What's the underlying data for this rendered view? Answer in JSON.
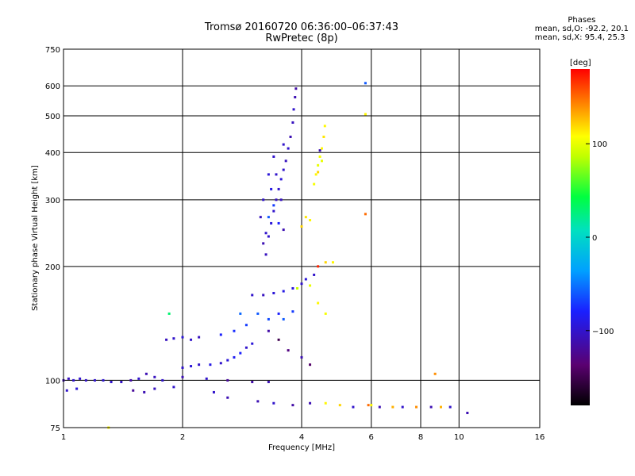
{
  "header": {
    "title_line1": "Tromsø 20160720 06:36:00–06:37:43",
    "title_line2": "RwPretec (8p)"
  },
  "phase_stats": {
    "heading": "Phases",
    "line_o": "mean, sd,O: -92.2, 20.1",
    "line_x": "mean, sd,X:  95.4, 25.3"
  },
  "colorbar": {
    "unit_label": "[deg]",
    "ticks": [
      {
        "value": 100,
        "label": "100"
      },
      {
        "value": 0,
        "label": "0"
      },
      {
        "value": -100,
        "label": "−100"
      }
    ],
    "range": [
      -180,
      180
    ]
  },
  "chart_data": {
    "type": "scatter",
    "title": "Tromsø 20160720 06:36:00–06:37:43",
    "subtitle": "RwPretec (8p)",
    "xlabel": "Frequency [MHz]",
    "ylabel": "Stationary phase Virtual Height [km]",
    "xscale": "log",
    "yscale": "log",
    "xlim": [
      1,
      16
    ],
    "ylim": [
      75,
      750
    ],
    "x_ticks": [
      {
        "value": 1,
        "label": "1"
      },
      {
        "value": 2,
        "label": "2"
      },
      {
        "value": 4,
        "label": "4"
      },
      {
        "value": 6,
        "label": "6"
      },
      {
        "value": 8,
        "label": "8"
      },
      {
        "value": 10,
        "label": "10"
      },
      {
        "value": 16,
        "label": "16"
      }
    ],
    "y_ticks": [
      {
        "value": 75,
        "label": "75"
      },
      {
        "value": 100,
        "label": "100"
      },
      {
        "value": 200,
        "label": "200"
      },
      {
        "value": 300,
        "label": "300"
      },
      {
        "value": 400,
        "label": "400"
      },
      {
        "value": 500,
        "label": "500"
      },
      {
        "value": 600,
        "label": "600"
      },
      {
        "value": 750,
        "label": "750"
      }
    ],
    "grid": true,
    "points": [
      {
        "x": 1.0,
        "y": 100,
        "phase": -110
      },
      {
        "x": 1.03,
        "y": 101,
        "phase": -105
      },
      {
        "x": 1.06,
        "y": 100,
        "phase": -100
      },
      {
        "x": 1.1,
        "y": 101,
        "phase": -100
      },
      {
        "x": 1.14,
        "y": 100,
        "phase": -102
      },
      {
        "x": 1.2,
        "y": 100,
        "phase": -100
      },
      {
        "x": 1.26,
        "y": 100,
        "phase": -98
      },
      {
        "x": 1.32,
        "y": 99,
        "phase": -100
      },
      {
        "x": 1.4,
        "y": 99,
        "phase": -103
      },
      {
        "x": 1.48,
        "y": 100,
        "phase": -115
      },
      {
        "x": 1.55,
        "y": 101,
        "phase": -100
      },
      {
        "x": 1.62,
        "y": 104,
        "phase": -110
      },
      {
        "x": 1.7,
        "y": 102,
        "phase": -105
      },
      {
        "x": 1.78,
        "y": 100,
        "phase": -100
      },
      {
        "x": 1.02,
        "y": 94,
        "phase": -100
      },
      {
        "x": 1.08,
        "y": 95,
        "phase": -95
      },
      {
        "x": 1.5,
        "y": 94,
        "phase": -120
      },
      {
        "x": 1.6,
        "y": 93,
        "phase": -110
      },
      {
        "x": 1.7,
        "y": 95,
        "phase": -105
      },
      {
        "x": 1.9,
        "y": 96,
        "phase": -100
      },
      {
        "x": 1.82,
        "y": 128,
        "phase": -105
      },
      {
        "x": 1.9,
        "y": 129,
        "phase": -100
      },
      {
        "x": 2.0,
        "y": 130,
        "phase": -95
      },
      {
        "x": 2.1,
        "y": 128,
        "phase": -100
      },
      {
        "x": 2.2,
        "y": 130,
        "phase": -105
      },
      {
        "x": 2.0,
        "y": 108,
        "phase": -100
      },
      {
        "x": 2.1,
        "y": 109,
        "phase": -95
      },
      {
        "x": 2.2,
        "y": 110,
        "phase": -100
      },
      {
        "x": 2.35,
        "y": 110,
        "phase": -90
      },
      {
        "x": 2.5,
        "y": 111,
        "phase": -100
      },
      {
        "x": 2.6,
        "y": 113,
        "phase": -95
      },
      {
        "x": 2.7,
        "y": 115,
        "phase": -85
      },
      {
        "x": 2.8,
        "y": 118,
        "phase": -80
      },
      {
        "x": 2.9,
        "y": 122,
        "phase": -100
      },
      {
        "x": 3.0,
        "y": 125,
        "phase": -95
      },
      {
        "x": 2.0,
        "y": 102,
        "phase": -110
      },
      {
        "x": 2.3,
        "y": 101,
        "phase": -100
      },
      {
        "x": 2.6,
        "y": 100,
        "phase": -120
      },
      {
        "x": 3.0,
        "y": 99,
        "phase": -115
      },
      {
        "x": 3.3,
        "y": 99,
        "phase": -110
      },
      {
        "x": 2.5,
        "y": 132,
        "phase": -80
      },
      {
        "x": 2.7,
        "y": 135,
        "phase": -75
      },
      {
        "x": 2.9,
        "y": 140,
        "phase": -70
      },
      {
        "x": 3.1,
        "y": 150,
        "phase": -60
      },
      {
        "x": 3.3,
        "y": 145,
        "phase": -65
      },
      {
        "x": 2.8,
        "y": 150,
        "phase": -55
      },
      {
        "x": 3.0,
        "y": 168,
        "phase": -100
      },
      {
        "x": 3.2,
        "y": 168,
        "phase": -105
      },
      {
        "x": 3.4,
        "y": 170,
        "phase": -95
      },
      {
        "x": 3.6,
        "y": 172,
        "phase": -90
      },
      {
        "x": 3.8,
        "y": 175,
        "phase": -95
      },
      {
        "x": 4.0,
        "y": 180,
        "phase": -100
      },
      {
        "x": 4.1,
        "y": 185,
        "phase": -95
      },
      {
        "x": 4.3,
        "y": 190,
        "phase": -100
      },
      {
        "x": 3.9,
        "y": 175,
        "phase": 90
      },
      {
        "x": 4.2,
        "y": 178,
        "phase": 100
      },
      {
        "x": 4.4,
        "y": 200,
        "phase": 170
      },
      {
        "x": 4.6,
        "y": 205,
        "phase": 120
      },
      {
        "x": 4.8,
        "y": 205,
        "phase": 110
      },
      {
        "x": 4.4,
        "y": 160,
        "phase": 110
      },
      {
        "x": 4.6,
        "y": 150,
        "phase": 105
      },
      {
        "x": 3.5,
        "y": 150,
        "phase": -80
      },
      {
        "x": 3.6,
        "y": 145,
        "phase": -60
      },
      {
        "x": 3.8,
        "y": 152,
        "phase": -70
      },
      {
        "x": 3.3,
        "y": 135,
        "phase": -115
      },
      {
        "x": 3.5,
        "y": 128,
        "phase": -150
      },
      {
        "x": 3.7,
        "y": 120,
        "phase": -130
      },
      {
        "x": 4.0,
        "y": 115,
        "phase": -110
      },
      {
        "x": 4.2,
        "y": 110,
        "phase": -140
      },
      {
        "x": 3.2,
        "y": 230,
        "phase": -110
      },
      {
        "x": 3.25,
        "y": 215,
        "phase": -105
      },
      {
        "x": 3.3,
        "y": 240,
        "phase": -100
      },
      {
        "x": 3.35,
        "y": 260,
        "phase": -95
      },
      {
        "x": 3.4,
        "y": 280,
        "phase": -100
      },
      {
        "x": 3.45,
        "y": 300,
        "phase": -105
      },
      {
        "x": 3.5,
        "y": 320,
        "phase": -100
      },
      {
        "x": 3.55,
        "y": 340,
        "phase": -95
      },
      {
        "x": 3.6,
        "y": 360,
        "phase": -100
      },
      {
        "x": 3.65,
        "y": 380,
        "phase": -105
      },
      {
        "x": 3.7,
        "y": 410,
        "phase": -100
      },
      {
        "x": 3.75,
        "y": 440,
        "phase": -110
      },
      {
        "x": 3.8,
        "y": 480,
        "phase": -105
      },
      {
        "x": 3.82,
        "y": 520,
        "phase": -100
      },
      {
        "x": 3.85,
        "y": 560,
        "phase": -110
      },
      {
        "x": 3.87,
        "y": 590,
        "phase": -115
      },
      {
        "x": 3.3,
        "y": 270,
        "phase": -60
      },
      {
        "x": 3.4,
        "y": 290,
        "phase": -70
      },
      {
        "x": 3.5,
        "y": 260,
        "phase": -80
      },
      {
        "x": 3.2,
        "y": 300,
        "phase": -100
      },
      {
        "x": 3.3,
        "y": 350,
        "phase": -95
      },
      {
        "x": 3.4,
        "y": 390,
        "phase": -100
      },
      {
        "x": 3.6,
        "y": 250,
        "phase": -110
      },
      {
        "x": 3.15,
        "y": 270,
        "phase": -105
      },
      {
        "x": 3.25,
        "y": 245,
        "phase": -100
      },
      {
        "x": 3.35,
        "y": 320,
        "phase": -90
      },
      {
        "x": 3.45,
        "y": 350,
        "phase": -100
      },
      {
        "x": 3.55,
        "y": 300,
        "phase": -105
      },
      {
        "x": 3.6,
        "y": 420,
        "phase": -100
      },
      {
        "x": 4.3,
        "y": 330,
        "phase": 105
      },
      {
        "x": 4.35,
        "y": 350,
        "phase": 110
      },
      {
        "x": 4.4,
        "y": 370,
        "phase": 100
      },
      {
        "x": 4.45,
        "y": 390,
        "phase": 105
      },
      {
        "x": 4.5,
        "y": 410,
        "phase": 110
      },
      {
        "x": 4.55,
        "y": 440,
        "phase": 115
      },
      {
        "x": 4.58,
        "y": 470,
        "phase": 110
      },
      {
        "x": 4.4,
        "y": 355,
        "phase": 120
      },
      {
        "x": 4.5,
        "y": 380,
        "phase": 100
      },
      {
        "x": 4.1,
        "y": 270,
        "phase": 115
      },
      {
        "x": 4.2,
        "y": 265,
        "phase": 110
      },
      {
        "x": 4.0,
        "y": 255,
        "phase": 120
      },
      {
        "x": 4.45,
        "y": 405,
        "phase": -110
      },
      {
        "x": 5.8,
        "y": 610,
        "phase": -60
      },
      {
        "x": 5.8,
        "y": 505,
        "phase": 110
      },
      {
        "x": 5.8,
        "y": 275,
        "phase": 150
      },
      {
        "x": 3.1,
        "y": 88,
        "phase": -110
      },
      {
        "x": 3.4,
        "y": 87,
        "phase": -100
      },
      {
        "x": 3.8,
        "y": 86,
        "phase": -115
      },
      {
        "x": 4.2,
        "y": 87,
        "phase": -110
      },
      {
        "x": 4.6,
        "y": 87,
        "phase": 110
      },
      {
        "x": 5.0,
        "y": 86,
        "phase": 120
      },
      {
        "x": 5.4,
        "y": 85,
        "phase": -100
      },
      {
        "x": 5.9,
        "y": 86,
        "phase": 150
      },
      {
        "x": 6.3,
        "y": 85,
        "phase": -110
      },
      {
        "x": 6.8,
        "y": 85,
        "phase": 130
      },
      {
        "x": 7.2,
        "y": 85,
        "phase": -100
      },
      {
        "x": 7.8,
        "y": 85,
        "phase": 140
      },
      {
        "x": 8.5,
        "y": 85,
        "phase": -110
      },
      {
        "x": 9.0,
        "y": 85,
        "phase": 130
      },
      {
        "x": 9.5,
        "y": 85,
        "phase": -100
      },
      {
        "x": 10.5,
        "y": 82,
        "phase": -110
      },
      {
        "x": 8.7,
        "y": 104,
        "phase": 140
      },
      {
        "x": 6.0,
        "y": 86,
        "phase": 110
      },
      {
        "x": 2.4,
        "y": 93,
        "phase": -100
      },
      {
        "x": 2.6,
        "y": 90,
        "phase": -110
      },
      {
        "x": 1.85,
        "y": 150,
        "phase": 30
      },
      {
        "x": 1.3,
        "y": 75,
        "phase": 110
      }
    ]
  }
}
